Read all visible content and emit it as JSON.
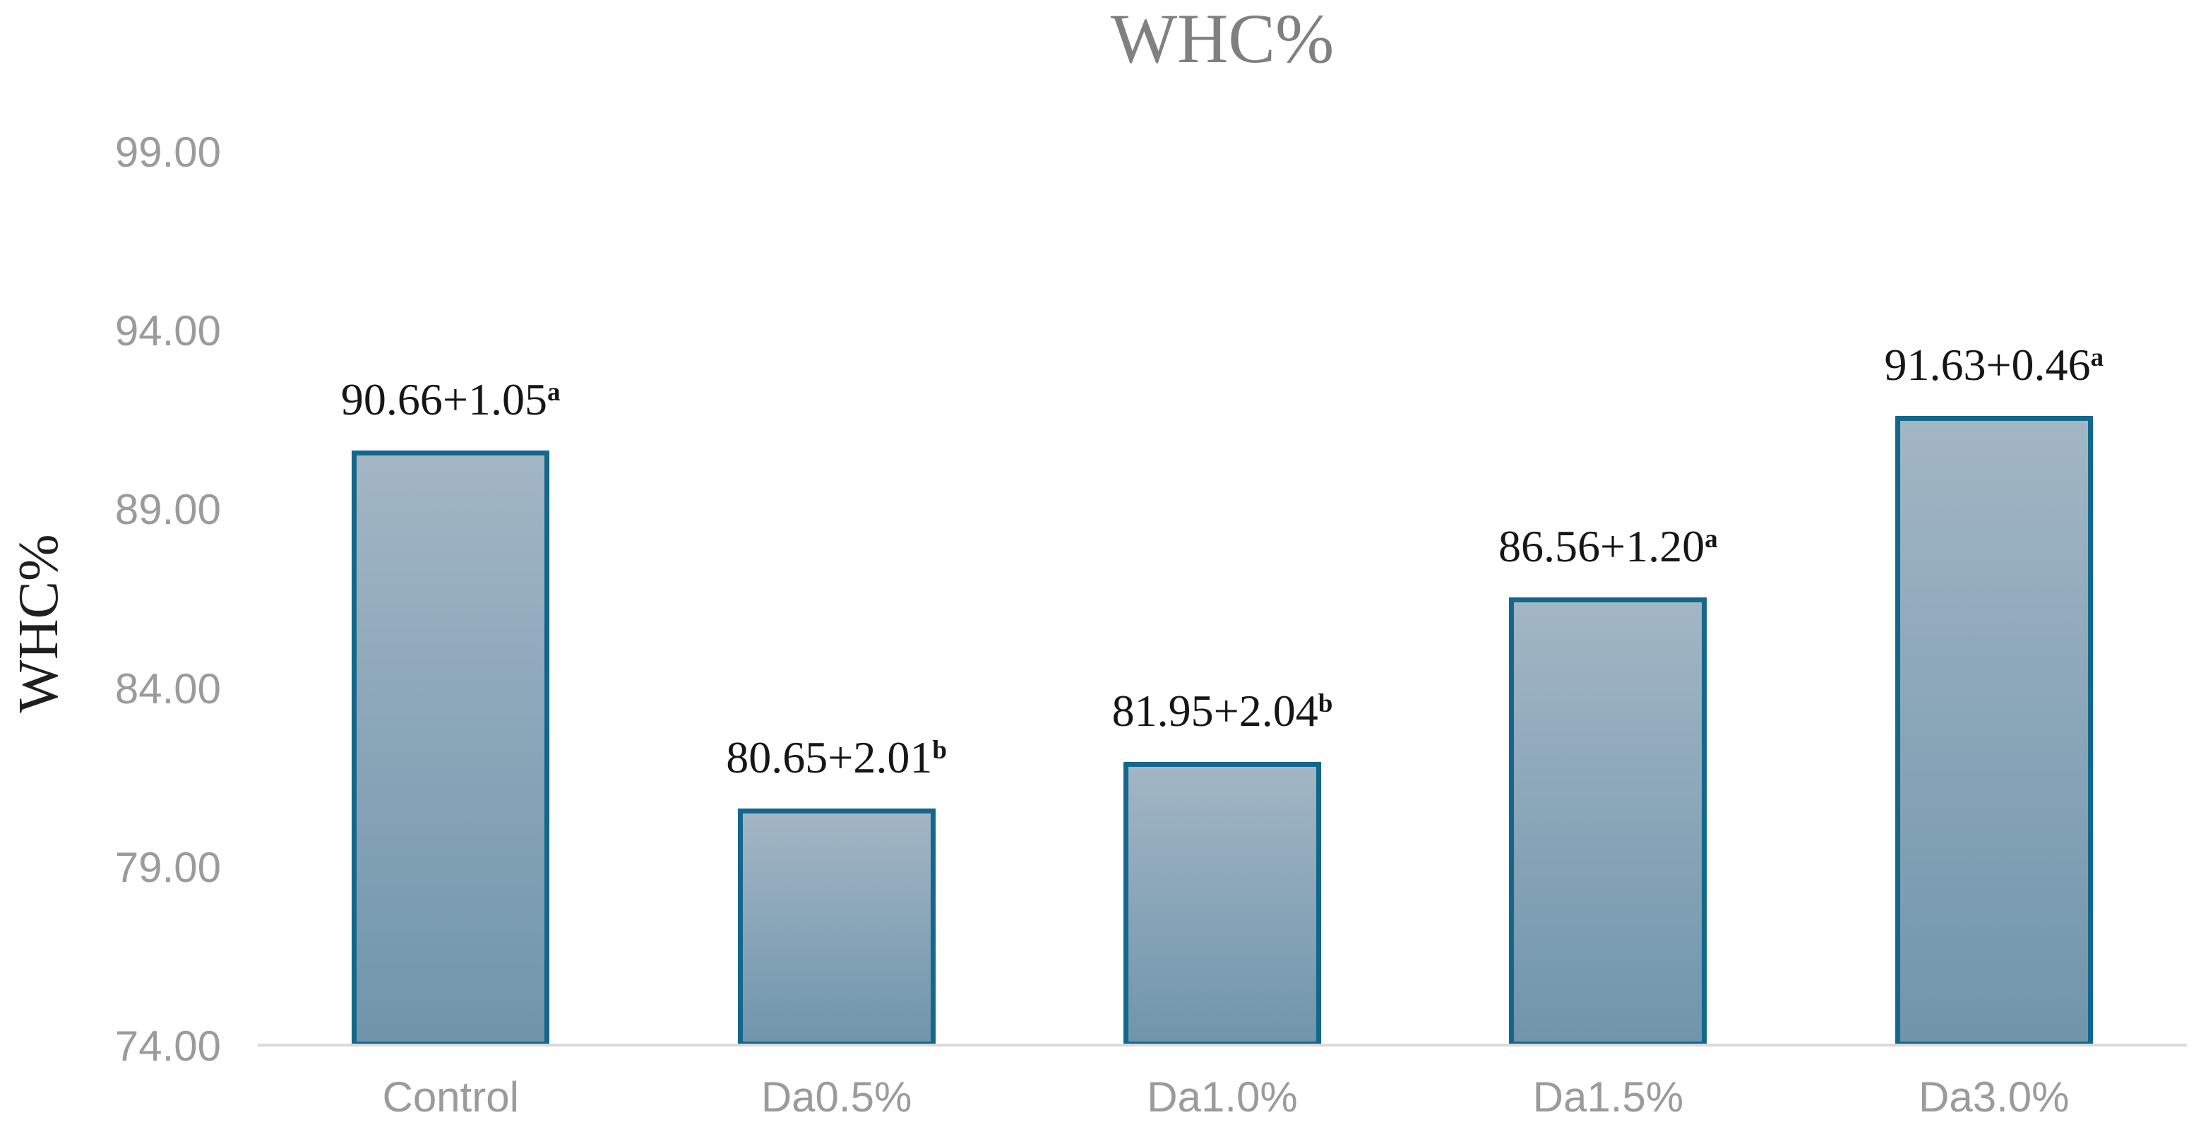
{
  "chart_data": {
    "type": "bar",
    "title": "WHC%",
    "xlabel": "",
    "ylabel": "WHC%",
    "categories": [
      "Control",
      "Da0.5%",
      "Da1.0%",
      "Da1.5%",
      "Da3.0%"
    ],
    "values": [
      90.66,
      80.65,
      81.95,
      86.56,
      91.63
    ],
    "errors": [
      1.05,
      2.01,
      2.04,
      1.2,
      0.46
    ],
    "bar_labels": [
      {
        "text": "90.66+1.05",
        "sup": "a"
      },
      {
        "text": "80.65+2.01",
        "sup": "b"
      },
      {
        "text": "81.95+2.04",
        "sup": "b"
      },
      {
        "text": "86.56+1.20",
        "sup": "a"
      },
      {
        "text": "91.63+0.46",
        "sup": "a"
      }
    ],
    "y_ticks": [
      "99.00",
      "94.00",
      "89.00",
      "84.00",
      "79.00",
      "74.00"
    ],
    "ylim": [
      74,
      99
    ],
    "grid": false,
    "legend": false,
    "colors": {
      "bar_fill_top": "#a2b6c5",
      "bar_fill_bottom": "#7095ab",
      "bar_border": "#14678c",
      "axis_line": "#d9d9d9",
      "title": "#808080",
      "tick_labels": "#9b9b9b",
      "value_labels": "#161616",
      "y_axis_title": "#1f1f1f"
    }
  }
}
